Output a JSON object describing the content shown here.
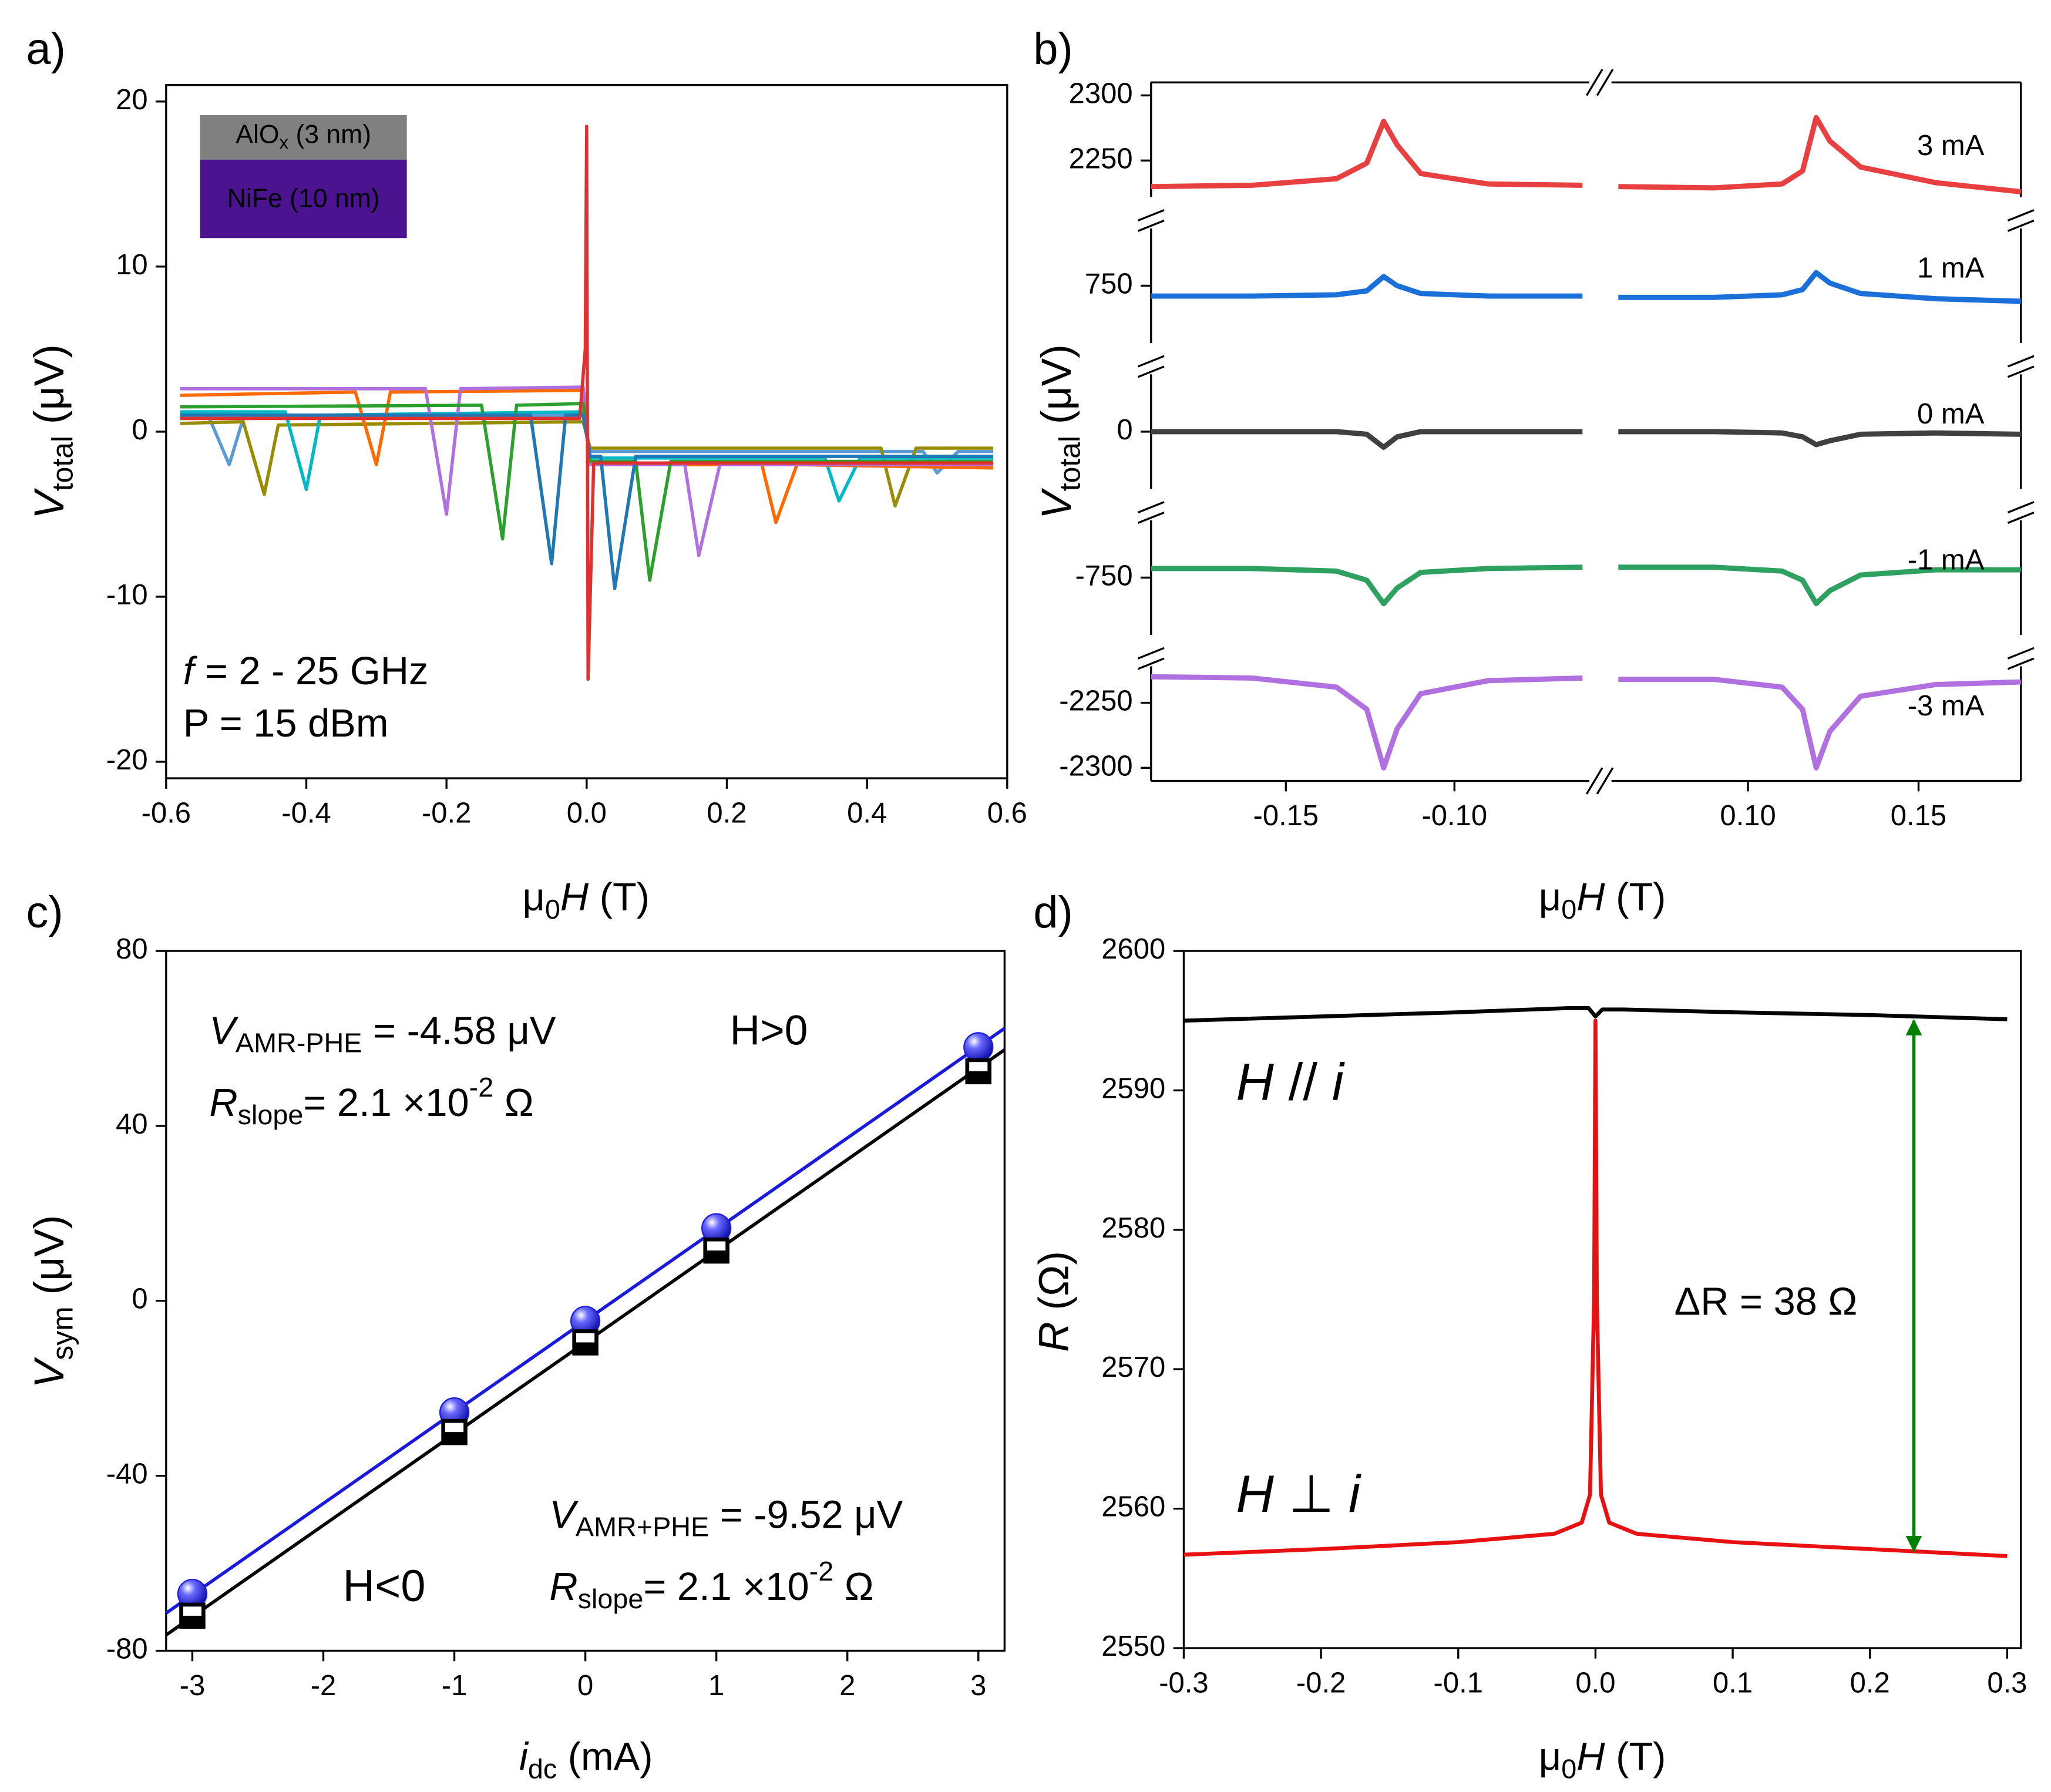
{
  "chart_data": [
    {
      "type": "line",
      "panel_label": "a)",
      "xlabel": [
        {
          "t": "μ"
        },
        {
          "t": "0",
          "sub": true
        },
        {
          "t": "H",
          "i": true
        },
        {
          "t": " (T)"
        }
      ],
      "ylabel": [
        {
          "t": "V",
          "i": true
        },
        {
          "t": "total",
          "sub": true
        },
        {
          "t": " (μV)"
        }
      ],
      "xlim": [
        -0.6,
        0.6
      ],
      "ylim": [
        -21,
        21
      ],
      "xticks": [
        -0.6,
        -0.4,
        -0.2,
        {
          "value": 0,
          "label": "0.0"
        },
        0.2,
        0.4,
        0.6
      ],
      "yticks": [
        -20,
        -10,
        0,
        10,
        20
      ],
      "layers": [
        {
          "runs": [
            {
              "t": "AlO"
            },
            {
              "t": "x",
              "sub": true
            },
            {
              "t": " (3 nm)"
            }
          ],
          "color": "#808080"
        },
        {
          "runs": [
            {
              "t": "NiFe (10 nm)"
            }
          ],
          "color": "#4b1390"
        }
      ],
      "notes": [
        [
          {
            "t": "f",
            "i": true
          },
          {
            "t": "  = 2 - 25 GHz"
          }
        ],
        [
          {
            "t": "P = 15 dBm"
          }
        ]
      ],
      "series": [
        {
          "color": "#5b9bd5",
          "x": [
            -0.58,
            -0.54,
            -0.51,
            -0.49,
            -0.005,
            0.005,
            0.48,
            0.5,
            0.53,
            0.58
          ],
          "values": [
            1,
            1,
            -2,
            0.8,
            1,
            -1.2,
            -1.2,
            -2.5,
            -1.2,
            -1.2
          ]
        },
        {
          "color": "#9a8c00",
          "x": [
            -0.58,
            -0.49,
            -0.46,
            -0.44,
            -0.005,
            0.005,
            0.42,
            0.44,
            0.47,
            0.58
          ],
          "values": [
            0.5,
            0.6,
            -3.8,
            0.4,
            0.6,
            -1,
            -1,
            -4.5,
            -1,
            -1
          ]
        },
        {
          "color": "#00b8c8",
          "x": [
            -0.58,
            -0.43,
            -0.4,
            -0.38,
            -0.005,
            0.005,
            0.34,
            0.36,
            0.39,
            0.58
          ],
          "values": [
            1.2,
            1.2,
            -3.5,
            1,
            1.2,
            -1.6,
            -1.6,
            -4.2,
            -1.6,
            -1.6
          ]
        },
        {
          "color": "#ff6a00",
          "x": [
            -0.58,
            -0.33,
            -0.3,
            -0.28,
            -0.005,
            0.005,
            0.25,
            0.27,
            0.3,
            0.58
          ],
          "values": [
            2.2,
            2.4,
            -2,
            2.4,
            2.5,
            -2,
            -2,
            -5.5,
            -2,
            -2.2
          ]
        },
        {
          "color": "#b070e0",
          "x": [
            -0.58,
            -0.23,
            -0.2,
            -0.18,
            -0.005,
            0.005,
            0.14,
            0.16,
            0.19,
            0.58
          ],
          "values": [
            2.6,
            2.6,
            -5,
            2.6,
            2.7,
            -2,
            -2,
            -7.5,
            -2,
            -2
          ]
        },
        {
          "color": "#2ca02c",
          "x": [
            -0.58,
            -0.15,
            -0.12,
            -0.1,
            -0.005,
            0.005,
            0.07,
            0.09,
            0.12,
            0.58
          ],
          "values": [
            1.5,
            1.6,
            -6.5,
            1.6,
            1.7,
            -1.8,
            -1.8,
            -9,
            -1.8,
            -1.8
          ]
        },
        {
          "color": "#1f77b4",
          "x": [
            -0.58,
            -0.08,
            -0.05,
            -0.03,
            -0.005,
            0.005,
            0.02,
            0.04,
            0.07,
            0.58
          ],
          "values": [
            1,
            1,
            -8,
            1,
            1,
            -1.5,
            -1.5,
            -9.5,
            -1.5,
            -1.5
          ]
        },
        {
          "color": "#e03030",
          "x": [
            -0.58,
            -0.01,
            -0.002,
            0,
            0.002,
            0.01,
            0.58
          ],
          "values": [
            0.8,
            0.8,
            5,
            18.5,
            -15,
            -1.9,
            -1.9
          ]
        }
      ]
    },
    {
      "type": "broken-line",
      "panel_label": "b)",
      "xlabel": [
        {
          "t": "μ"
        },
        {
          "t": "0",
          "sub": true
        },
        {
          "t": "H",
          "i": true
        },
        {
          "t": " (T)"
        }
      ],
      "ylabel": [
        {
          "t": "V",
          "i": true
        },
        {
          "t": "total",
          "sub": true
        },
        {
          "t": " (μV)"
        }
      ],
      "xlim": [
        [
          -0.19,
          -0.06
        ],
        [
          0.06,
          0.18
        ]
      ],
      "ylim": [
        [
          -2310,
          -2222
        ],
        [
          -794,
          -706
        ],
        [
          -44,
          44
        ],
        [
          706,
          794
        ],
        [
          2222,
          2310
        ]
      ],
      "xticks": [
        -0.15,
        {
          "value": -0.1,
          "label": "-0.10"
        },
        {
          "value": 0.1,
          "label": "0.10"
        },
        0.15
      ],
      "yticks": [
        -2300,
        -2250,
        -750,
        0,
        750,
        2250,
        2300
      ],
      "x": [
        -0.19,
        -0.16,
        -0.135,
        -0.126,
        -0.121,
        -0.117,
        -0.11,
        -0.09,
        -0.062,
        0,
        0.062,
        0.09,
        0.11,
        0.116,
        0.12,
        0.124,
        0.133,
        0.155,
        0.18
      ],
      "series": [
        {
          "name": "3 mA",
          "color": "#e84040",
          "values": [
            2230,
            2231,
            2236,
            2248,
            2280,
            2262,
            2240,
            2232,
            2231,
            null,
            2230,
            2229,
            2232,
            2242,
            2283,
            2265,
            2245,
            2233,
            2226
          ]
        },
        {
          "name": "1 mA",
          "color": "#1a6fd8",
          "values": [
            742,
            742,
            743,
            746,
            757,
            750,
            744,
            742,
            742,
            null,
            741,
            741,
            743,
            747,
            760,
            752,
            744,
            740,
            738
          ]
        },
        {
          "name": "0 mA",
          "color": "#404040",
          "values": [
            0,
            0,
            0,
            -2,
            -12,
            -4,
            0,
            0,
            0,
            null,
            0,
            0,
            -1,
            -4,
            -10,
            -7,
            -2,
            -1,
            -2
          ]
        },
        {
          "name": "-1 mA",
          "color": "#2ea060",
          "values": [
            -743,
            -743,
            -745,
            -752,
            -770,
            -758,
            -746,
            -743,
            -742,
            null,
            -742,
            -742,
            -745,
            -752,
            -770,
            -760,
            -748,
            -744,
            -744
          ]
        },
        {
          "name": "-3 mA",
          "color": "#b070e0",
          "values": [
            -2230,
            -2231,
            -2238,
            -2255,
            -2300,
            -2270,
            -2243,
            -2233,
            -2231,
            null,
            -2232,
            -2232,
            -2238,
            -2255,
            -2300,
            -2272,
            -2245,
            -2236,
            -2234
          ]
        }
      ]
    },
    {
      "type": "scatter",
      "panel_label": "c)",
      "xlabel": [
        {
          "t": "i",
          "i": true
        },
        {
          "t": "dc",
          "sub": true
        },
        {
          "t": " (mA)"
        }
      ],
      "ylabel": [
        {
          "t": "V",
          "i": true
        },
        {
          "t": "sym",
          "sub": true
        },
        {
          "t": "  (μV)"
        }
      ],
      "xlim": [
        -3.2,
        3.2
      ],
      "ylim": [
        -80,
        80
      ],
      "xticks": [
        -3,
        -2,
        -1,
        0,
        1,
        2,
        3
      ],
      "yticks": [
        -80,
        -40,
        0,
        40,
        80
      ],
      "series": [
        {
          "marker": "sphere",
          "color": "#1a1adc",
          "x": [
            -3,
            -1,
            0,
            1,
            3
          ],
          "values": [
            -67,
            -25.5,
            -4.6,
            16.6,
            58
          ]
        },
        {
          "marker": "square",
          "color": "#000000",
          "x": [
            -3,
            -1,
            0,
            1,
            3
          ],
          "values": [
            -72,
            -30,
            -9.5,
            11.5,
            52.5
          ]
        }
      ],
      "fits": [
        {
          "color": "#1a1adc",
          "x": [
            -3.2,
            3.2
          ],
          "values": [
            -71.4,
            62.3
          ]
        },
        {
          "color": "#000000",
          "x": [
            -3.2,
            3.2
          ],
          "values": [
            -76.4,
            57.4
          ]
        }
      ],
      "annotations": [
        {
          "color": "#1a1adc",
          "runs": [
            {
              "t": "V",
              "i": true
            },
            {
              "t": "AMR-PHE",
              "sub": true
            },
            {
              "t": " = -4.58 μV"
            }
          ]
        },
        {
          "color": "#1a1adc",
          "runs": [
            {
              "t": "R",
              "i": true
            },
            {
              "t": "slope",
              "sub": true
            },
            {
              "t": "= 2.1 ×10"
            },
            {
              "t": "-2",
              "sup": true
            },
            {
              "t": " Ω"
            }
          ]
        },
        {
          "color": "#1a1adc",
          "runs": [
            {
              "t": "H>0"
            }
          ]
        },
        {
          "color": "#000000",
          "runs": [
            {
              "t": "V",
              "i": true
            },
            {
              "t": "AMR+PHE",
              "sub": true
            },
            {
              "t": " = -9.52 μV"
            }
          ]
        },
        {
          "color": "#000000",
          "runs": [
            {
              "t": "R",
              "i": true
            },
            {
              "t": "slope",
              "sub": true
            },
            {
              "t": "= 2.1 ×10"
            },
            {
              "t": "-2",
              "sup": true
            },
            {
              "t": " Ω"
            }
          ]
        },
        {
          "color": "#000000",
          "runs": [
            {
              "t": "H<0"
            }
          ]
        }
      ]
    },
    {
      "type": "line",
      "panel_label": "d)",
      "xlabel": [
        {
          "t": "μ"
        },
        {
          "t": "0",
          "sub": true
        },
        {
          "t": "H",
          "i": true
        },
        {
          "t": " (T)"
        }
      ],
      "ylabel": [
        {
          "t": "R",
          "i": true
        },
        {
          "t": " (Ω)"
        }
      ],
      "xlim": [
        -0.3,
        0.31
      ],
      "ylim": [
        2550,
        2600
      ],
      "xticks": [
        -0.3,
        -0.2,
        -0.1,
        {
          "value": 0,
          "label": "0.0"
        },
        0.1,
        0.2,
        0.3
      ],
      "yticks": [
        2550,
        2560,
        2570,
        2580,
        2590,
        2600
      ],
      "series": [
        {
          "color": "#000000",
          "x": [
            -0.3,
            -0.2,
            -0.1,
            -0.02,
            -0.005,
            0,
            0.005,
            0.02,
            0.1,
            0.2,
            0.3
          ],
          "values": [
            2595,
            2595.3,
            2595.6,
            2595.9,
            2595.9,
            2595.3,
            2595.8,
            2595.8,
            2595.6,
            2595.4,
            2595.1
          ]
        },
        {
          "color": "#e81010",
          "x": [
            -0.3,
            -0.2,
            -0.1,
            -0.03,
            -0.01,
            -0.004,
            -0.001,
            0,
            0.001,
            0.004,
            0.01,
            0.03,
            0.1,
            0.2,
            0.3
          ],
          "values": [
            2556.7,
            2557.1,
            2557.6,
            2558.2,
            2559,
            2561,
            2575,
            2595,
            2575,
            2561,
            2559,
            2558.2,
            2557.6,
            2557.1,
            2556.6
          ]
        }
      ],
      "arrow": {
        "color": "#008000",
        "x": 0.232,
        "y": [
          2557,
          2595
        ]
      },
      "annotations": [
        {
          "color": "#000000",
          "runs": [
            {
              "t": "H",
              "i": true
            },
            {
              "t": " // "
            },
            {
              "t": "i",
              "i": true
            }
          ]
        },
        {
          "color": "#e81010",
          "runs": [
            {
              "t": "H",
              "i": true
            },
            {
              "t": " ⊥ "
            },
            {
              "t": "i",
              "i": true
            }
          ]
        },
        {
          "color": "#000000",
          "runs": [
            {
              "t": "ΔR = 38 Ω"
            }
          ]
        }
      ]
    }
  ]
}
